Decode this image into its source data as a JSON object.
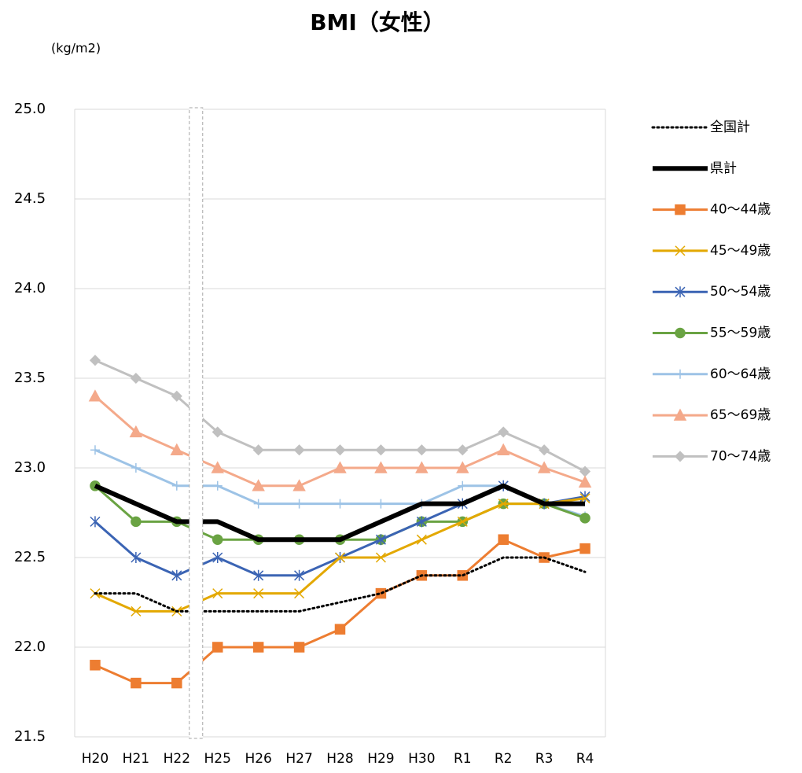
{
  "chart_data": {
    "type": "line",
    "title": "BMI（女性）",
    "y_label": "(kg/m2)",
    "categories": [
      "H20",
      "H21",
      "H22",
      "H25",
      "H26",
      "H27",
      "H28",
      "H29",
      "H30",
      "R1",
      "R2",
      "R3",
      "R4"
    ],
    "ylim": [
      21.5,
      25.0
    ],
    "yticks": [
      {
        "value": 21.5,
        "label": "21.5"
      },
      {
        "value": 22,
        "label": "22.0"
      },
      22.5,
      {
        "value": 23,
        "label": "23.0"
      },
      23.5,
      {
        "value": 24,
        "label": "24.0"
      },
      24.5,
      {
        "value": 25,
        "label": "25.0"
      }
    ],
    "grid": true,
    "legend": "right",
    "series": [
      {
        "name": "全国計",
        "color": "#000000",
        "style": "dotted",
        "marker": "none",
        "values": [
          22.3,
          22.3,
          22.2,
          22.2,
          22.2,
          22.2,
          22.25,
          22.3,
          22.4,
          22.4,
          22.5,
          22.5,
          22.42
        ]
      },
      {
        "name": "県計",
        "color": "#000000",
        "style": "thick",
        "marker": "none",
        "values": [
          22.9,
          22.8,
          22.7,
          22.7,
          22.6,
          22.6,
          22.6,
          22.7,
          22.8,
          22.8,
          22.9,
          22.8,
          22.8
        ]
      },
      {
        "name": "40～44歳",
        "color": "#ED7D31",
        "style": "solid",
        "marker": "square",
        "values": [
          21.9,
          21.8,
          21.8,
          22.0,
          22.0,
          22.0,
          22.1,
          22.3,
          22.4,
          22.4,
          22.6,
          22.5,
          22.55
        ]
      },
      {
        "name": "45～49歳",
        "color": "#E3A800",
        "style": "solid",
        "marker": "x",
        "values": [
          22.3,
          22.2,
          22.2,
          22.3,
          22.3,
          22.3,
          22.5,
          22.5,
          22.6,
          22.7,
          22.8,
          22.8,
          22.83
        ]
      },
      {
        "name": "50～54歳",
        "color": "#3B64B4",
        "style": "solid",
        "marker": "star",
        "values": [
          22.7,
          22.5,
          22.4,
          22.5,
          22.4,
          22.4,
          22.5,
          22.6,
          22.7,
          22.8,
          22.9,
          22.8,
          22.84
        ]
      },
      {
        "name": "55～59歳",
        "color": "#6AA343",
        "style": "solid",
        "marker": "circle",
        "values": [
          22.9,
          22.7,
          22.7,
          22.6,
          22.6,
          22.6,
          22.6,
          22.6,
          22.7,
          22.7,
          22.8,
          22.8,
          22.72
        ]
      },
      {
        "name": "60～64歳",
        "color": "#9DC3E6",
        "style": "solid",
        "marker": "plus",
        "values": [
          23.1,
          23.0,
          22.9,
          22.9,
          22.8,
          22.8,
          22.8,
          22.8,
          22.8,
          22.9,
          22.9,
          22.8,
          22.73
        ]
      },
      {
        "name": "65～69歳",
        "color": "#F4A98A",
        "style": "solid",
        "marker": "triangle",
        "values": [
          23.4,
          23.2,
          23.1,
          23.0,
          22.9,
          22.9,
          23.0,
          23.0,
          23.0,
          23.0,
          23.1,
          23.0,
          22.92
        ]
      },
      {
        "name": "70～74歳",
        "color": "#C0C0C0",
        "style": "solid",
        "marker": "diamond",
        "values": [
          23.6,
          23.5,
          23.4,
          23.2,
          23.1,
          23.1,
          23.1,
          23.1,
          23.1,
          23.1,
          23.2,
          23.1,
          22.98
        ]
      }
    ]
  }
}
